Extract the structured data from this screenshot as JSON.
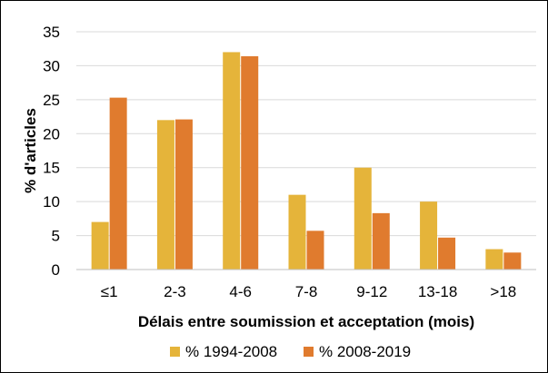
{
  "chart_data": {
    "type": "bar",
    "title": "",
    "xlabel": "Délais entre soumission et acceptation (mois)",
    "ylabel": "% d'articles",
    "categories": [
      "≤1",
      "2-3",
      "4-6",
      "7-8",
      "9-12",
      "13-18",
      ">18"
    ],
    "series": [
      {
        "name": "% 1994-2008",
        "color": "#E5B43A",
        "values": [
          7,
          22,
          32,
          11,
          15,
          10,
          3
        ]
      },
      {
        "name": "% 2008-2019",
        "color": "#E07B2E",
        "values": [
          25.3,
          22.1,
          31.4,
          5.7,
          8.3,
          4.7,
          2.5
        ]
      }
    ],
    "ylim": [
      0,
      35
    ],
    "yticks": [
      0,
      5,
      10,
      15,
      20,
      25,
      30,
      35
    ],
    "grid": true,
    "legend_position": "bottom"
  }
}
